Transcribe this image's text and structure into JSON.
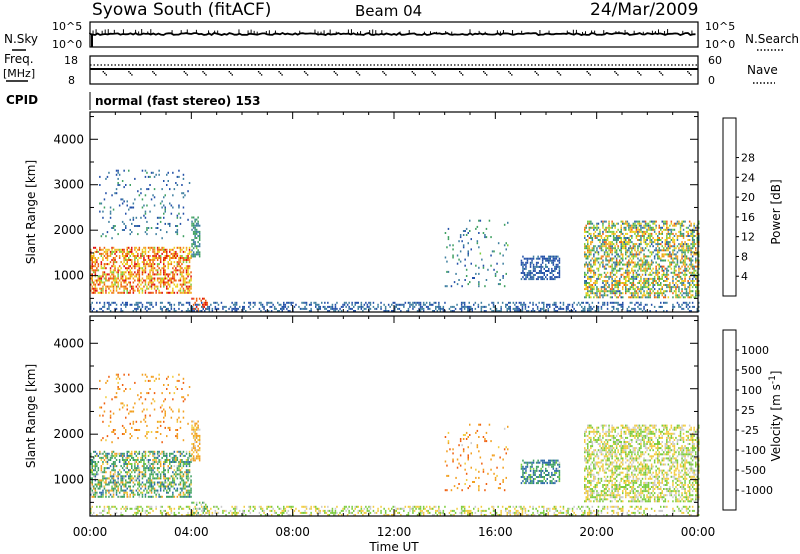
{
  "header": {
    "station": "Syowa South (fitACF)",
    "beam": "Beam 04",
    "date": "24/Mar/2009"
  },
  "strip_labels": {
    "nsky": "N.Sky",
    "nsky_hi": "10^5",
    "nsky_lo": "10^0",
    "nsearch": "N.Search",
    "nsearch_hi": "10^5",
    "nsearch_lo": "10^0",
    "freq": "Freq.",
    "freq_unit": "[MHz]",
    "freq_hi": "18",
    "freq_lo": "8",
    "nave": "Nave",
    "nave_hi": "60",
    "nave_lo": "0",
    "cpid": "CPID",
    "cpid_value": "normal (fast stereo) 153"
  },
  "axes": {
    "ylabel": "Slant Range [km]",
    "xlabel": "Time UT",
    "y_ticks": [
      "1000",
      "2000",
      "3000",
      "4000"
    ],
    "x_ticks": [
      "00:00",
      "04:00",
      "08:00",
      "12:00",
      "16:00",
      "20:00",
      "00:00"
    ]
  },
  "colorbars": {
    "power": {
      "label": "Power [dB]",
      "colors": [
        "#1a2ee8",
        "#2350a8",
        "#3f7fa0",
        "#3ea060",
        "#7ccc3c",
        "#eed21c",
        "#f2a020",
        "#ee6010",
        "#e01010"
      ],
      "tick_labels": [
        "4",
        "8",
        "12",
        "16",
        "20",
        "24",
        "28"
      ]
    },
    "velocity": {
      "label": "Velocity [m s^-1]",
      "colors": [
        "#e01010",
        "#f06010",
        "#f2a020",
        "#f2cc40",
        "#cccccc",
        "#7ccc3c",
        "#3ea060",
        "#2c6aa8",
        "#1a2ee8"
      ],
      "tick_labels": [
        "-1000",
        "-500",
        "-100",
        "-25",
        "25",
        "100",
        "500",
        "1000"
      ]
    }
  },
  "chart_data": [
    {
      "type": "heatmap",
      "title": "Power",
      "x_label": "Time UT",
      "y_label": "Slant Range [km]",
      "x_range": [
        "00:00",
        "24:00"
      ],
      "y_range_km": [
        200,
        4600
      ],
      "color_scale": "Power [dB]",
      "color_range": [
        0,
        31
      ],
      "regions": [
        {
          "t": [
            0.0,
            4.0
          ],
          "r": [
            600,
            1600
          ],
          "level": [
            16,
            30
          ]
        },
        {
          "t": [
            4.0,
            4.6
          ],
          "r": [
            200,
            500
          ],
          "level": [
            24,
            30
          ]
        },
        {
          "t": [
            0.3,
            4.0
          ],
          "r": [
            1800,
            3300
          ],
          "level": [
            4,
            12
          ]
        },
        {
          "t": [
            4.0,
            4.3
          ],
          "r": [
            1400,
            2300
          ],
          "level": [
            8,
            14
          ]
        },
        {
          "t": [
            14.0,
            16.5
          ],
          "r": [
            700,
            2200
          ],
          "level": [
            4,
            14
          ]
        },
        {
          "t": [
            17.0,
            18.5
          ],
          "r": [
            900,
            1400
          ],
          "level": [
            4,
            8
          ]
        },
        {
          "t": [
            19.5,
            24.0
          ],
          "r": [
            500,
            2200
          ],
          "level": [
            6,
            26
          ]
        },
        {
          "t": [
            0.0,
            24.0
          ],
          "r": [
            200,
            400
          ],
          "level": [
            4,
            10
          ]
        }
      ]
    },
    {
      "type": "heatmap",
      "title": "Velocity",
      "x_label": "Time UT",
      "y_label": "Slant Range [km]",
      "x_range": [
        "00:00",
        "24:00"
      ],
      "y_range_km": [
        200,
        4600
      ],
      "color_scale": "Velocity [m s^-1]",
      "color_range": [
        -1000,
        1000
      ],
      "regions": [
        {
          "t": [
            0.0,
            4.0
          ],
          "r": [
            600,
            1600
          ],
          "velocity": [
            -200,
            600
          ]
        },
        {
          "t": [
            0.3,
            4.0
          ],
          "r": [
            1800,
            3300
          ],
          "velocity": [
            -100,
            200
          ]
        },
        {
          "t": [
            14.0,
            16.5
          ],
          "r": [
            700,
            2200
          ],
          "velocity": [
            -700,
            -50
          ]
        },
        {
          "t": [
            17.0,
            18.5
          ],
          "r": [
            900,
            1400
          ],
          "velocity": [
            -300,
            0
          ]
        },
        {
          "t": [
            19.5,
            22.0
          ],
          "r": [
            500,
            1600
          ],
          "velocity": [
            -800,
            0
          ]
        },
        {
          "t": [
            22.0,
            24.0
          ],
          "r": [
            500,
            2200
          ],
          "velocity": [
            0,
            900
          ]
        },
        {
          "t": [
            0.0,
            24.0
          ],
          "r": [
            200,
            400
          ],
          "velocity": [
            -100,
            100
          ]
        }
      ]
    }
  ]
}
